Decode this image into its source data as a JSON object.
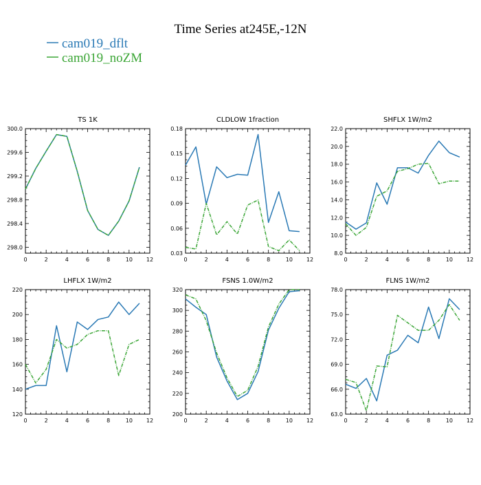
{
  "title": "Time Series at245E,-12N",
  "legend": [
    {
      "label": "cam019_dflt",
      "color": "#2878b4"
    },
    {
      "label": "cam019_noZM",
      "color": "#3aa535"
    }
  ],
  "chart_data": [
    {
      "type": "line",
      "title": "TS   1K",
      "x_ticks": [
        0,
        2,
        4,
        6,
        8,
        10,
        12
      ],
      "xlim": [
        0,
        12
      ],
      "ylim": [
        297.9,
        300.0
      ],
      "y_ticks": [
        "298.0",
        "298.4",
        "298.8",
        "299.2",
        "299.6",
        "300.0"
      ],
      "series": [
        {
          "name": "cam019_dflt",
          "x": [
            0,
            1,
            2,
            3,
            4,
            5,
            6,
            7,
            8,
            9,
            10,
            11
          ],
          "values": [
            298.98,
            299.33,
            299.62,
            299.9,
            299.87,
            299.28,
            298.62,
            298.3,
            298.2,
            298.44,
            298.78,
            299.35
          ]
        },
        {
          "name": "cam019_noZM",
          "x": [
            0,
            1,
            2,
            3,
            4,
            5,
            6,
            7,
            8,
            9,
            10,
            11
          ],
          "values": [
            298.98,
            299.33,
            299.62,
            299.9,
            299.87,
            299.28,
            298.62,
            298.3,
            298.2,
            298.44,
            298.78,
            299.35
          ]
        }
      ]
    },
    {
      "type": "line",
      "title": "CLDLOW   1fraction",
      "x_ticks": [
        0,
        2,
        4,
        6,
        8,
        10,
        12
      ],
      "xlim": [
        0,
        12
      ],
      "ylim": [
        0.03,
        0.18
      ],
      "y_ticks": [
        "0.03",
        "0.06",
        "0.09",
        "0.12",
        "0.15",
        "0.18"
      ],
      "series": [
        {
          "name": "cam019_dflt",
          "x": [
            0,
            1,
            2,
            3,
            4,
            5,
            6,
            7,
            8,
            9,
            10,
            11
          ],
          "values": [
            0.136,
            0.158,
            0.089,
            0.134,
            0.121,
            0.125,
            0.124,
            0.173,
            0.067,
            0.104,
            0.057,
            0.056
          ]
        },
        {
          "name": "cam019_noZM",
          "x": [
            0,
            1,
            2,
            3,
            4,
            5,
            6,
            7,
            8,
            9,
            10,
            11
          ],
          "values": [
            0.037,
            0.035,
            0.09,
            0.052,
            0.068,
            0.053,
            0.088,
            0.094,
            0.038,
            0.033,
            0.046,
            0.033
          ]
        }
      ]
    },
    {
      "type": "line",
      "title": "SHFLX   1W/m2",
      "x_ticks": [
        0,
        2,
        4,
        6,
        8,
        10,
        12
      ],
      "xlim": [
        0,
        12
      ],
      "ylim": [
        8.0,
        22.0
      ],
      "y_ticks": [
        "8.0",
        "10.0",
        "12.0",
        "14.0",
        "16.0",
        "18.0",
        "20.0",
        "22.0"
      ],
      "series": [
        {
          "name": "cam019_dflt",
          "x": [
            0,
            1,
            2,
            3,
            4,
            5,
            6,
            7,
            8,
            9,
            10,
            11
          ],
          "values": [
            11.5,
            10.7,
            11.4,
            15.9,
            13.5,
            17.6,
            17.6,
            17.0,
            19.0,
            20.6,
            19.3,
            18.8
          ]
        },
        {
          "name": "cam019_noZM",
          "x": [
            0,
            1,
            2,
            3,
            4,
            5,
            6,
            7,
            8,
            9,
            10,
            11
          ],
          "values": [
            11.3,
            10.0,
            10.9,
            14.4,
            15.0,
            17.2,
            17.5,
            18.0,
            18.1,
            15.8,
            16.1,
            16.1
          ]
        }
      ]
    },
    {
      "type": "line",
      "title": "LHFLX   1W/m2",
      "x_ticks": [
        0,
        2,
        4,
        6,
        8,
        10,
        12
      ],
      "xlim": [
        0,
        12
      ],
      "ylim": [
        120,
        220
      ],
      "y_ticks": [
        "120",
        "140",
        "160",
        "180",
        "200",
        "220"
      ],
      "series": [
        {
          "name": "cam019_dflt",
          "x": [
            0,
            1,
            2,
            3,
            4,
            5,
            6,
            7,
            8,
            9,
            10,
            11
          ],
          "values": [
            140,
            143,
            143,
            191,
            154,
            194,
            188,
            196,
            198,
            210,
            200,
            209
          ]
        },
        {
          "name": "cam019_noZM",
          "x": [
            0,
            1,
            2,
            3,
            4,
            5,
            6,
            7,
            8,
            9,
            10,
            11
          ],
          "values": [
            160,
            145,
            156,
            180,
            173,
            176,
            184,
            187,
            187,
            151,
            176,
            180
          ]
        }
      ]
    },
    {
      "type": "line",
      "title": "FSNS   1.0W/m2",
      "x_ticks": [
        0,
        2,
        4,
        6,
        8,
        10,
        12
      ],
      "xlim": [
        0,
        12
      ],
      "ylim": [
        200,
        320
      ],
      "y_ticks": [
        "200",
        "220",
        "240",
        "260",
        "280",
        "300",
        "320"
      ],
      "series": [
        {
          "name": "cam019_dflt",
          "x": [
            0,
            1,
            2,
            3,
            4,
            5,
            6,
            7,
            8,
            9,
            10,
            11
          ],
          "values": [
            311,
            303,
            296,
            255,
            232,
            214,
            220,
            241,
            281,
            302,
            318,
            319
          ]
        },
        {
          "name": "cam019_noZM",
          "x": [
            0,
            1,
            2,
            3,
            4,
            5,
            6,
            7,
            8,
            9,
            10,
            11
          ],
          "values": [
            315,
            311,
            290,
            259,
            235,
            217,
            223,
            246,
            284,
            306,
            320,
            320
          ]
        }
      ]
    },
    {
      "type": "line",
      "title": "FLNS   1W/m2",
      "x_ticks": [
        0,
        2,
        4,
        6,
        8,
        10,
        12
      ],
      "xlim": [
        0,
        12
      ],
      "ylim": [
        63.0,
        78.0
      ],
      "y_ticks": [
        "63.0",
        "66.0",
        "69.0",
        "72.0",
        "75.0",
        "78.0"
      ],
      "series": [
        {
          "name": "cam019_dflt",
          "x": [
            0,
            1,
            2,
            3,
            4,
            5,
            6,
            7,
            8,
            9,
            10,
            11
          ],
          "values": [
            66.6,
            66.1,
            67.3,
            64.6,
            70.1,
            70.7,
            72.5,
            71.6,
            75.9,
            72.1,
            76.9,
            75.6
          ]
        },
        {
          "name": "cam019_noZM",
          "x": [
            0,
            1,
            2,
            3,
            4,
            5,
            6,
            7,
            8,
            9,
            10,
            11
          ],
          "values": [
            67.2,
            66.8,
            63.4,
            68.8,
            68.7,
            74.9,
            74.0,
            73.1,
            73.1,
            74.3,
            76.2,
            74.3
          ]
        }
      ]
    }
  ]
}
